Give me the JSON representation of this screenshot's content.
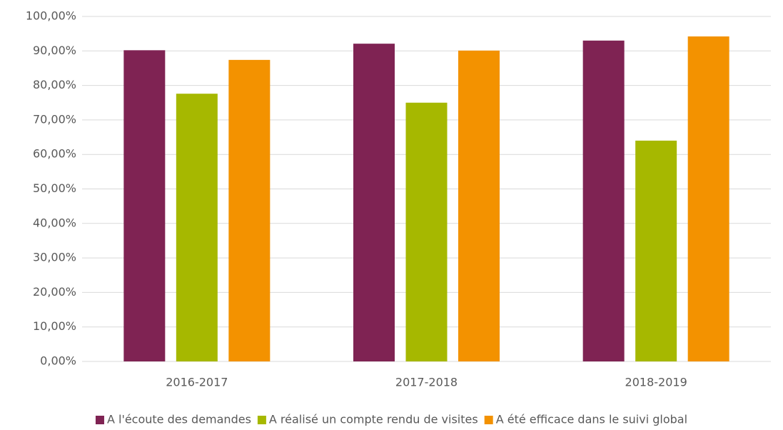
{
  "chart_data": {
    "type": "bar",
    "categories": [
      "2016-2017",
      "2017-2018",
      "2018-2019"
    ],
    "series": [
      {
        "name": "A l'écoute des demandes",
        "color": "#7f2353",
        "values": [
          90.2,
          92.1,
          93.0
        ]
      },
      {
        "name": "A réalisé un compte rendu de visites",
        "color": "#a6b800",
        "values": [
          77.6,
          75.0,
          64.0
        ]
      },
      {
        "name": "A été efficace dans le suivi global",
        "color": "#f39200",
        "values": [
          87.4,
          90.1,
          94.2
        ]
      }
    ],
    "ylim": [
      0,
      100
    ],
    "yticks": [
      {
        "value": 0,
        "label": "0,00%"
      },
      {
        "value": 10,
        "label": "10,00%"
      },
      {
        "value": 20,
        "label": "20,00%"
      },
      {
        "value": 30,
        "label": "30,00%"
      },
      {
        "value": 40,
        "label": "40,00%"
      },
      {
        "value": 50,
        "label": "50,00%"
      },
      {
        "value": 60,
        "label": "60,00%"
      },
      {
        "value": 70,
        "label": "70,00%"
      },
      {
        "value": 80,
        "label": "80,00%"
      },
      {
        "value": 90,
        "label": "90,00%"
      },
      {
        "value": 100,
        "label": "100,00%"
      }
    ],
    "grid": true,
    "legend": "bottom"
  }
}
